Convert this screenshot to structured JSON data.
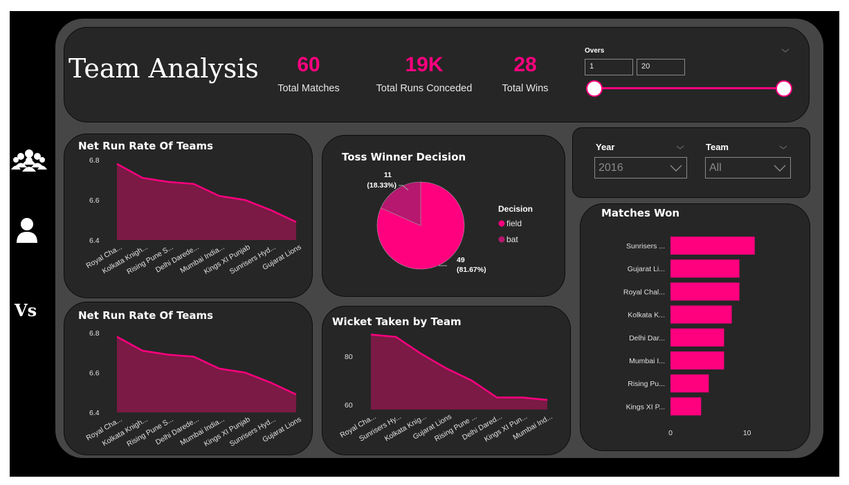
{
  "page": {
    "title": "Team Analysis"
  },
  "kpis": [
    {
      "value": "60",
      "label": "Total Matches"
    },
    {
      "value": "19K",
      "label": "Total Runs Conceded"
    },
    {
      "value": "28",
      "label": "Total Wins"
    }
  ],
  "overs": {
    "label": "Overs",
    "min": "1",
    "max": "20",
    "range_min": 1,
    "range_max": 20
  },
  "filters": {
    "year": {
      "label": "Year",
      "value": "2016"
    },
    "team": {
      "label": "Team",
      "value": "All"
    }
  },
  "nav": [
    "teams-icon",
    "player-icon",
    "versus-icon"
  ],
  "colors": {
    "accent": "#ff007f",
    "area_fill": "#7a1a45",
    "card": "#262626",
    "shell": "#464646"
  },
  "chart_data": [
    {
      "id": "nrr1",
      "type": "area",
      "title": "Net Run Rate Of Teams",
      "categories": [
        "Royal Cha...",
        "Kolkata Knigh...",
        "Rising Pune S...",
        "Delhi Darede...",
        "Mumbai India...",
        "Kings XI Punjab",
        "Sunrisers Hyd...",
        "Gujarat Lions"
      ],
      "values": [
        6.78,
        6.71,
        6.69,
        6.68,
        6.62,
        6.6,
        6.55,
        6.49
      ],
      "ylim": [
        6.4,
        6.8
      ],
      "yticks": [
        "6.8",
        "6.6",
        "6.4"
      ],
      "ytick_values": [
        6.8,
        6.6,
        6.4
      ]
    },
    {
      "id": "nrr2",
      "type": "area",
      "title": "Net Run Rate Of Teams",
      "categories": [
        "Royal Cha...",
        "Kolkata Knigh...",
        "Rising Pune S...",
        "Delhi Darede...",
        "Mumbai India...",
        "Kings XI Punjab",
        "Sunrisers Hyd...",
        "Gujarat Lions"
      ],
      "values": [
        6.78,
        6.71,
        6.69,
        6.68,
        6.62,
        6.6,
        6.55,
        6.49
      ],
      "ylim": [
        6.4,
        6.8
      ],
      "yticks": [
        "6.8",
        "6.6",
        "6.4"
      ],
      "ytick_values": [
        6.8,
        6.6,
        6.4
      ]
    },
    {
      "id": "toss",
      "type": "pie",
      "title": "Toss Winner Decision",
      "legend_title": "Decision",
      "slices": [
        {
          "name": "field",
          "value": 49,
          "label": "49",
          "pct": "(81.67%)",
          "color": "#ff007f"
        },
        {
          "name": "bat",
          "value": 11,
          "label": "11",
          "pct": "(18.33%)",
          "color": "#b5186e"
        }
      ]
    },
    {
      "id": "wickets",
      "type": "area",
      "title": "Wicket Taken by Team",
      "categories": [
        "Royal Cha...",
        "Sunrisers Hy...",
        "Kolkata Knig...",
        "Gujarat Lions",
        "Rising Pune ...",
        "Delhi Dared...",
        "Kings XI Pun...",
        "Mumbai Ind..."
      ],
      "values": [
        89,
        88,
        81,
        75,
        70,
        63,
        63,
        62
      ],
      "ylim": [
        58,
        92
      ],
      "yticks": [
        "80",
        "60"
      ],
      "ytick_values": [
        80,
        60
      ]
    },
    {
      "id": "wins",
      "type": "bar",
      "title": "Matches Won",
      "categories": [
        "Sunrisers ...",
        "Gujarat Li...",
        "Royal Chal...",
        "Kolkata K...",
        "Delhi Dar...",
        "Mumbai I...",
        "Rising Pu...",
        "Kings XI P..."
      ],
      "values": [
        11,
        9,
        9,
        8,
        7,
        7,
        5,
        4
      ],
      "xlim": [
        0,
        15
      ],
      "xticks": [
        "0",
        "10"
      ],
      "xtick_values": [
        0,
        10
      ]
    }
  ]
}
